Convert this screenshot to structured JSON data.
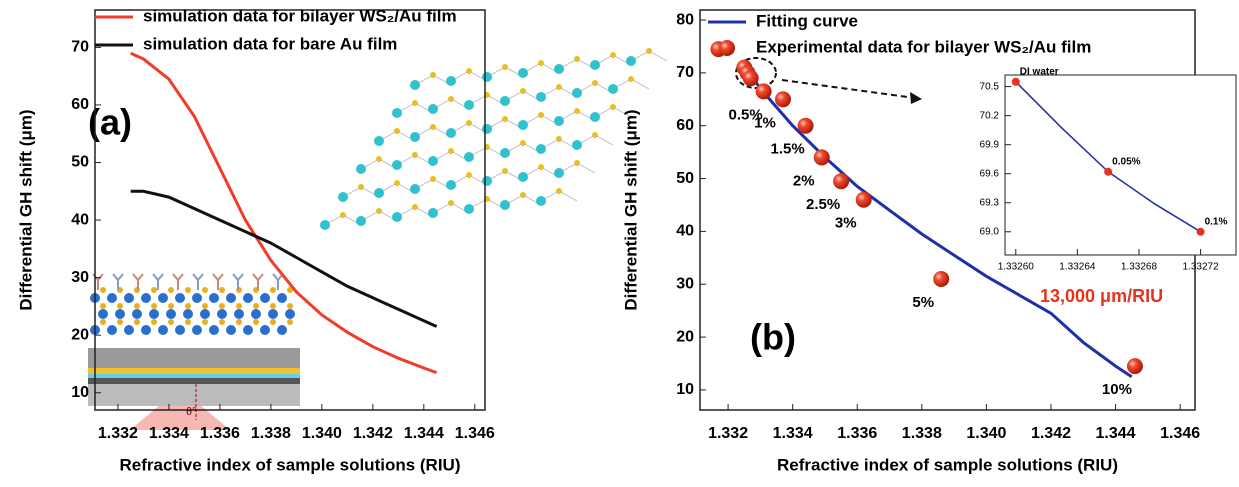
{
  "chart_data": [
    {
      "type": "line",
      "x_label": "Refractive index of sample solutions (RIU)",
      "y_label": "Differential GH shift (μm)",
      "annotation": "(a)",
      "inset_label": "θ°",
      "xlim": [
        1.3311,
        1.3464
      ],
      "xticks": [
        1.332,
        1.334,
        1.336,
        1.338,
        {
          "value": 1.34,
          "label": "1.340"
        },
        1.342,
        1.344,
        1.346
      ],
      "ylim": [
        7,
        76.5
      ],
      "yticks": [
        10,
        20,
        30,
        40,
        50,
        60,
        70
      ],
      "series": [
        {
          "name": "simulation data for bilayer WS₂/Au film",
          "color": "#f03c28",
          "style": "line",
          "x": [
            1.3325,
            1.333,
            1.334,
            1.335,
            1.336,
            1.337,
            1.338,
            1.339,
            1.34,
            1.341,
            1.342,
            1.343,
            1.344,
            1.3445
          ],
          "values": [
            69,
            68,
            64.5,
            58,
            49,
            40,
            33,
            27.5,
            23.5,
            20.5,
            18,
            16,
            14.3,
            13.5
          ]
        },
        {
          "name": "simulation data for bare Au film",
          "color": "#111111",
          "style": "line",
          "x": [
            1.3325,
            1.333,
            1.334,
            1.335,
            1.336,
            1.337,
            1.338,
            1.339,
            1.34,
            1.341,
            1.342,
            1.343,
            1.344,
            1.3445
          ],
          "values": [
            45,
            45,
            44,
            42,
            40,
            38,
            36,
            33.5,
            31,
            28.5,
            26.5,
            24.5,
            22.5,
            21.5
          ]
        }
      ]
    },
    {
      "type": "line",
      "x_label": "Refractive index of sample solutions (RIU)",
      "y_label": "Differential GH shift (μm)",
      "annotation": "(b)",
      "sensitivity": "13,000 μm/RIU",
      "xlim": [
        1.33113,
        1.34646
      ],
      "xticks": [
        1.332,
        1.334,
        1.336,
        1.338,
        {
          "value": 1.34,
          "label": "1.340"
        },
        1.342,
        1.344,
        1.346
      ],
      "ylim": [
        6.2,
        81.9
      ],
      "yticks": [
        10,
        20,
        30,
        40,
        50,
        60,
        70,
        80
      ],
      "series": [
        {
          "name": "Fitting curve",
          "color": "#1f2fa8",
          "style": "line",
          "x": [
            1.3326,
            1.333,
            1.334,
            1.335,
            1.336,
            1.337,
            1.338,
            1.339,
            1.34,
            1.341,
            1.342,
            1.343,
            1.344,
            1.3445
          ],
          "values": [
            70.5,
            67,
            60,
            54,
            48.5,
            44,
            39.5,
            35.5,
            31.5,
            28,
            24.5,
            19,
            14.5,
            12.5
          ]
        },
        {
          "name": "Experimental data for bilayer WS₂/Au film",
          "color": "#e8321e",
          "style": "marker",
          "x": [
            1.3317,
            1.3325,
            1.3326,
            1.3327,
            1.3331,
            1.3337,
            1.3344,
            1.3349,
            1.3355,
            1.3362,
            1.3386,
            1.3446
          ],
          "values": [
            74.5,
            71,
            70,
            69,
            66.5,
            65,
            60,
            54,
            49.5,
            46,
            31,
            14.5
          ],
          "labels": [
            null,
            null,
            null,
            null,
            "0.5%",
            "1%",
            "1.5%",
            "2%",
            "2.5%",
            "3%",
            "5%",
            "10%"
          ]
        }
      ]
    },
    {
      "type": "line",
      "xlim": [
        1.332593,
        1.332743
      ],
      "xticks": [
        {
          "value": 1.3326,
          "label": "1.33260"
        },
        {
          "value": 1.33264,
          "label": "1.33264"
        },
        {
          "value": 1.33268,
          "label": "1.33268"
        },
        {
          "value": 1.33272,
          "label": "1.33272"
        }
      ],
      "ylim": [
        68.76,
        70.62
      ],
      "yticks": [
        {
          "value": 69,
          "label": "69.0"
        },
        69.3,
        69.6,
        69.9,
        70.2,
        70.5
      ],
      "series": [
        {
          "color": "#1f2fa8",
          "style": "line",
          "x": [
            1.3326,
            1.33263,
            1.33266,
            1.33269,
            1.33272
          ],
          "values": [
            70.55,
            70.07,
            69.62,
            69.29,
            69.0
          ]
        },
        {
          "color": "#e8321e",
          "style": "marker",
          "x": [
            1.3326,
            1.33266,
            1.33272
          ],
          "values": [
            70.55,
            69.62,
            69.0
          ],
          "labels": [
            "DI water",
            "0.05%",
            "0.1%"
          ]
        }
      ]
    }
  ]
}
